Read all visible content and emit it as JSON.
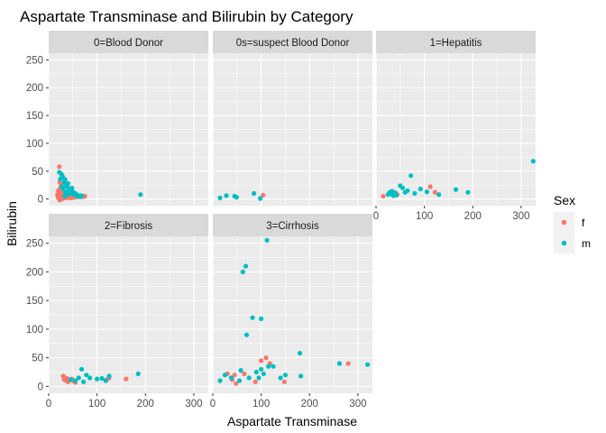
{
  "chart_data": {
    "type": "scatter",
    "title": "Aspartate Transminase and Bilirubin by Category",
    "xlabel": "Aspartate Transminase",
    "ylabel": "Bilirubin",
    "xlim": [
      0,
      330
    ],
    "ylim": [
      -12,
      262
    ],
    "x_ticks": [
      0,
      100,
      200,
      300
    ],
    "y_ticks": [
      0,
      50,
      100,
      150,
      200,
      250
    ],
    "grid": true,
    "legend": {
      "title": "Sex",
      "position": "right",
      "entries": [
        {
          "label": "f",
          "color": "#F8766D"
        },
        {
          "label": "m",
          "color": "#00BFC4"
        }
      ]
    },
    "facets": [
      {
        "label": "0=Blood Donor",
        "f": [
          [
            22,
            58
          ],
          [
            23,
            30
          ],
          [
            24,
            20
          ],
          [
            20,
            15
          ],
          [
            21,
            10
          ],
          [
            18,
            8
          ],
          [
            19,
            5
          ],
          [
            20,
            2
          ],
          [
            22,
            0
          ],
          [
            23,
            -2
          ],
          [
            24,
            12
          ],
          [
            25,
            18
          ],
          [
            26,
            25
          ],
          [
            27,
            6
          ],
          [
            28,
            3
          ],
          [
            25,
            -1
          ],
          [
            26,
            10
          ],
          [
            28,
            14
          ],
          [
            30,
            8
          ],
          [
            31,
            4
          ],
          [
            29,
            1
          ],
          [
            27,
            16
          ],
          [
            24,
            7
          ],
          [
            22,
            12
          ],
          [
            21,
            3
          ],
          [
            32,
            6
          ],
          [
            34,
            10
          ],
          [
            33,
            2
          ],
          [
            35,
            5
          ],
          [
            36,
            8
          ],
          [
            38,
            4
          ],
          [
            40,
            2
          ],
          [
            42,
            6
          ],
          [
            45,
            3
          ],
          [
            48,
            2
          ],
          [
            50,
            5
          ],
          [
            55,
            3
          ],
          [
            60,
            4
          ],
          [
            70,
            4
          ],
          [
            75,
            5
          ]
        ],
        "m": [
          [
            22,
            48
          ],
          [
            24,
            36
          ],
          [
            26,
            45
          ],
          [
            28,
            42
          ],
          [
            30,
            38
          ],
          [
            32,
            30
          ],
          [
            34,
            35
          ],
          [
            36,
            25
          ],
          [
            38,
            22
          ],
          [
            40,
            28
          ],
          [
            42,
            18
          ],
          [
            45,
            15
          ],
          [
            30,
            18
          ],
          [
            27,
            22
          ],
          [
            35,
            12
          ],
          [
            44,
            10
          ],
          [
            48,
            20
          ],
          [
            50,
            13
          ],
          [
            52,
            8
          ],
          [
            55,
            10
          ],
          [
            58,
            6
          ],
          [
            60,
            7
          ],
          [
            62,
            5
          ],
          [
            65,
            4
          ],
          [
            68,
            6
          ],
          [
            40,
            14
          ],
          [
            38,
            8
          ],
          [
            33,
            5
          ],
          [
            190,
            8
          ]
        ]
      },
      {
        "label": "0s=suspect Blood Donor",
        "f": [
          [
            104,
            7
          ]
        ],
        "m": [
          [
            15,
            2
          ],
          [
            28,
            6
          ],
          [
            45,
            5
          ],
          [
            49,
            3
          ],
          [
            85,
            10
          ],
          [
            98,
            1
          ]
        ]
      },
      {
        "label": "1=Hepatitis",
        "f": [
          [
            15,
            5
          ],
          [
            32,
            9
          ],
          [
            35,
            13
          ],
          [
            44,
            8
          ],
          [
            112,
            22
          ],
          [
            122,
            12
          ]
        ],
        "m": [
          [
            25,
            8
          ],
          [
            28,
            12
          ],
          [
            30,
            10
          ],
          [
            33,
            14
          ],
          [
            36,
            6
          ],
          [
            40,
            11
          ],
          [
            42,
            7
          ],
          [
            50,
            24
          ],
          [
            55,
            20
          ],
          [
            60,
            12
          ],
          [
            65,
            15
          ],
          [
            72,
            42
          ],
          [
            80,
            10
          ],
          [
            92,
            18
          ],
          [
            105,
            13
          ],
          [
            130,
            8
          ],
          [
            165,
            17
          ],
          [
            190,
            12
          ],
          [
            325,
            68
          ]
        ]
      },
      {
        "label": "2=Fibrosis",
        "f": [
          [
            30,
            18
          ],
          [
            32,
            12
          ],
          [
            34,
            15
          ],
          [
            36,
            10
          ],
          [
            38,
            14
          ],
          [
            40,
            8
          ],
          [
            44,
            11
          ],
          [
            48,
            13
          ],
          [
            52,
            9
          ],
          [
            55,
            7
          ],
          [
            120,
            12
          ],
          [
            125,
            15
          ],
          [
            160,
            13
          ]
        ],
        "m": [
          [
            45,
            12
          ],
          [
            55,
            10
          ],
          [
            62,
            15
          ],
          [
            68,
            30
          ],
          [
            72,
            8
          ],
          [
            78,
            20
          ],
          [
            85,
            15
          ],
          [
            100,
            13
          ],
          [
            110,
            14
          ],
          [
            118,
            10
          ],
          [
            125,
            18
          ],
          [
            185,
            22
          ]
        ]
      },
      {
        "label": "3=Cirrhosis",
        "f": [
          [
            30,
            22
          ],
          [
            40,
            12
          ],
          [
            45,
            20
          ],
          [
            48,
            5
          ],
          [
            62,
            200
          ],
          [
            65,
            22
          ],
          [
            88,
            8
          ],
          [
            100,
            45
          ],
          [
            110,
            50
          ],
          [
            118,
            40
          ],
          [
            148,
            8
          ],
          [
            280,
            40
          ]
        ],
        "m": [
          [
            15,
            10
          ],
          [
            25,
            20
          ],
          [
            38,
            15
          ],
          [
            55,
            10
          ],
          [
            58,
            28
          ],
          [
            62,
            200
          ],
          [
            68,
            210
          ],
          [
            70,
            90
          ],
          [
            75,
            15
          ],
          [
            82,
            120
          ],
          [
            90,
            25
          ],
          [
            95,
            15
          ],
          [
            100,
            118
          ],
          [
            100,
            30
          ],
          [
            105,
            22
          ],
          [
            112,
            255
          ],
          [
            115,
            35
          ],
          [
            125,
            35
          ],
          [
            140,
            15
          ],
          [
            150,
            20
          ],
          [
            180,
            58
          ],
          [
            182,
            18
          ],
          [
            262,
            40
          ],
          [
            320,
            38
          ]
        ]
      }
    ]
  }
}
